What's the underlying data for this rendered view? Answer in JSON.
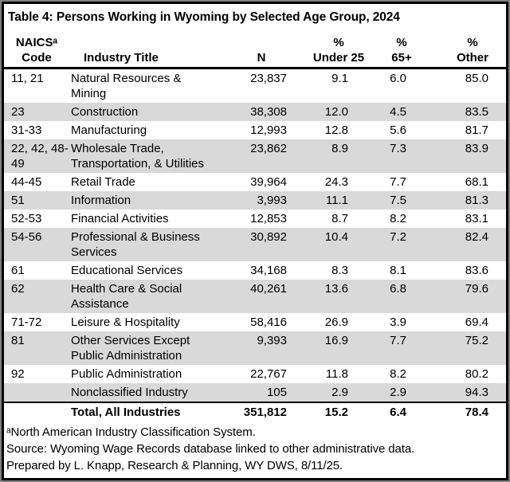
{
  "title": "Table 4: Persons Working in Wyoming by Selected Age Group, 2024",
  "style": {
    "zebra_row_color": "#d9d9d9",
    "rule_color": "#000000",
    "frame_border_color": "#000000",
    "frame_outer_edge_color": "#808080"
  },
  "table": {
    "columns": [
      {
        "id": "code",
        "line1": "NAICSᵃ",
        "line2": "Code"
      },
      {
        "id": "industry",
        "line1": "",
        "line2": "Industry Title"
      },
      {
        "id": "n",
        "line1": "",
        "line2": "N"
      },
      {
        "id": "under25",
        "line1": "%",
        "line2": "Under 25"
      },
      {
        "id": "p65",
        "line1": "%",
        "line2": "65+"
      },
      {
        "id": "other",
        "line1": "%",
        "line2": "Other"
      }
    ],
    "rows": [
      {
        "code": "11, 21",
        "industry": "Natural Resources & Mining",
        "n": "23,837",
        "under25": "9.1",
        "p65": "6.0",
        "other": "85.0"
      },
      {
        "code": "23",
        "industry": "Construction",
        "n": "38,308",
        "under25": "12.0",
        "p65": "4.5",
        "other": "83.5"
      },
      {
        "code": "31-33",
        "industry": "Manufacturing",
        "n": "12,993",
        "under25": "12.8",
        "p65": "5.6",
        "other": "81.7"
      },
      {
        "code": "22, 42, 48-49",
        "industry": "Wholesale Trade, Transportation, & Utilities",
        "n": "23,862",
        "under25": "8.9",
        "p65": "7.3",
        "other": "83.9"
      },
      {
        "code": "44-45",
        "industry": "Retail Trade",
        "n": "39,964",
        "under25": "24.3",
        "p65": "7.7",
        "other": "68.1"
      },
      {
        "code": "51",
        "industry": "Information",
        "n": "3,993",
        "under25": "11.1",
        "p65": "7.5",
        "other": "81.3"
      },
      {
        "code": "52-53",
        "industry": "Financial Activities",
        "n": "12,853",
        "under25": "8.7",
        "p65": "8.2",
        "other": "83.1"
      },
      {
        "code": "54-56",
        "industry": "Professional & Business Services",
        "n": "30,892",
        "under25": "10.4",
        "p65": "7.2",
        "other": "82.4"
      },
      {
        "code": "61",
        "industry": "Educational Services",
        "n": "34,168",
        "under25": "8.3",
        "p65": "8.1",
        "other": "83.6"
      },
      {
        "code": "62",
        "industry": "Health Care & Social Assistance",
        "n": "40,261",
        "under25": "13.6",
        "p65": "6.8",
        "other": "79.6"
      },
      {
        "code": "71-72",
        "industry": "Leisure & Hospitality",
        "n": "58,416",
        "under25": "26.9",
        "p65": "3.9",
        "other": "69.4"
      },
      {
        "code": "81",
        "industry": "Other Services Except Public Administration",
        "n": "9,393",
        "under25": "16.9",
        "p65": "7.7",
        "other": "75.2"
      },
      {
        "code": "92",
        "industry": "Public Administration",
        "n": "22,767",
        "under25": "11.8",
        "p65": "8.2",
        "other": "80.2"
      },
      {
        "code": "",
        "industry": "Nonclassified Industry",
        "n": "105",
        "under25": "2.9",
        "p65": "2.9",
        "other": "94.3"
      }
    ],
    "total_row": {
      "code": "",
      "industry": "Total, All Industries",
      "n": "351,812",
      "under25": "15.2",
      "p65": "6.4",
      "other": "78.4"
    }
  },
  "footnotes": [
    "ᵃNorth American Industry Classification System.",
    "Source: Wyoming Wage Records database linked to other administrative data.",
    "Prepared by L. Knapp, Research & Planning, WY DWS, 8/11/25."
  ]
}
